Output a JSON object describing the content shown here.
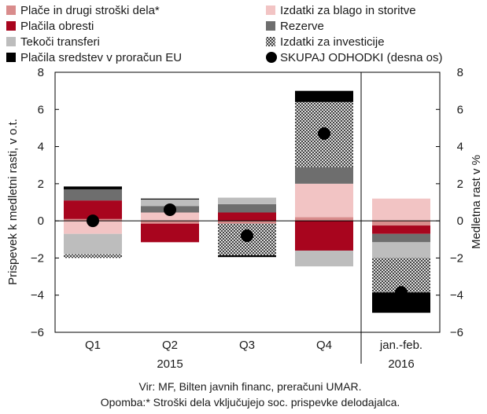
{
  "chart_data": {
    "type": "bar",
    "stacked": true,
    "categories": [
      "Q1",
      "Q2",
      "Q3",
      "Q4",
      "jan.-feb."
    ],
    "year_labels": [
      "2015",
      "2016"
    ],
    "ylabel": "Prispevek k medletni rasti, v o.t.",
    "ylabel_right": "Medletna rast v %",
    "ylim": [
      -6,
      8
    ],
    "yticks": [
      -6,
      -4,
      -2,
      0,
      2,
      4,
      6,
      8
    ],
    "ylim_right": [
      -6,
      8
    ],
    "yticks_right": [
      -6,
      -4,
      -2,
      0,
      2,
      4,
      6,
      8
    ],
    "grid": false,
    "legend_position": "top",
    "series": [
      {
        "name": "Plače in drugi stroški dela*",
        "key": "place",
        "color": "#d98c8c",
        "values": [
          0.1,
          -0.15,
          -0.15,
          0.2,
          -0.25
        ]
      },
      {
        "name": "Izdatki za blago in storitve",
        "key": "blago",
        "color": "#f2c4c4",
        "values": [
          -0.7,
          0.45,
          0.0,
          1.8,
          1.2
        ]
      },
      {
        "name": "Plačila obresti",
        "key": "obresti",
        "color": "#a8051e",
        "values": [
          1.0,
          -1.0,
          0.45,
          -1.6,
          -0.45
        ]
      },
      {
        "name": "Rezerve",
        "key": "rezerve",
        "color": "#6e6e6e",
        "values": [
          0.6,
          0.35,
          0.45,
          0.9,
          -0.45
        ]
      },
      {
        "name": "Tekoči transferi",
        "key": "tekoci",
        "color": "#bdbdbd",
        "values": [
          -1.1,
          0.35,
          0.35,
          -0.85,
          -0.85
        ]
      },
      {
        "name": "Izdatki za investicije",
        "key": "investicije",
        "color": "#ffffff",
        "pattern": true,
        "values": [
          -0.2,
          0.0,
          -1.7,
          3.5,
          -1.85
        ]
      },
      {
        "name": "Plačila sredstev v proračun EU",
        "key": "eu",
        "color": "#000000",
        "values": [
          0.15,
          0.05,
          -0.1,
          0.6,
          -1.1
        ]
      }
    ],
    "line_series": {
      "name": "SKUPAJ ODHODKI (desna os)",
      "key": "skupaj",
      "color": "#000000",
      "values": [
        0.0,
        0.6,
        -0.8,
        4.7,
        -3.85
      ]
    },
    "notes": [
      "Vir: MF, Bilten javnih financ, preračuni UMAR.",
      "Opomba:* Stroški dela vključujejo soc. prispevke delodajalca."
    ]
  }
}
